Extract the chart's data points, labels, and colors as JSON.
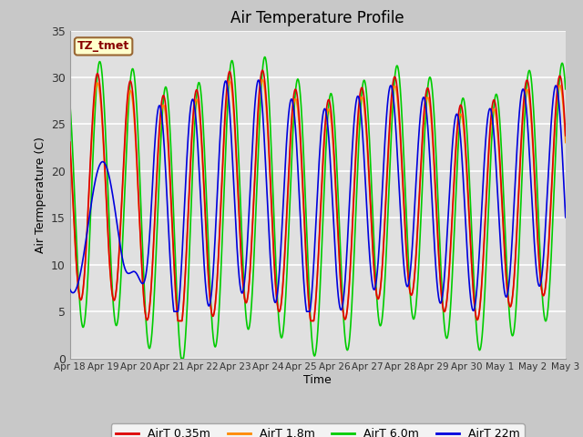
{
  "title": "Air Temperature Profile",
  "xlabel": "Time",
  "ylabel": "Air Termperature (C)",
  "ylim": [
    0,
    35
  ],
  "annotation_text": "TZ_tmet",
  "annotation_bg": "#FFFFCC",
  "annotation_border": "#996633",
  "annotation_text_color": "#880000",
  "fig_bg": "#C8C8C8",
  "plot_bg": "#E0E0E0",
  "grid_color": "#FFFFFF",
  "series": [
    {
      "label": "AirT 0.35m",
      "color": "#DD0000",
      "lw": 1.2
    },
    {
      "label": "AirT 1.8m",
      "color": "#FF8800",
      "lw": 1.2
    },
    {
      "label": "AirT 6.0m",
      "color": "#00CC00",
      "lw": 1.2
    },
    {
      "label": "AirT 22m",
      "color": "#0000DD",
      "lw": 1.2
    }
  ],
  "xtick_labels": [
    "Apr 18",
    "Apr 19",
    "Apr 20",
    "Apr 21",
    "Apr 22",
    "Apr 23",
    "Apr 24",
    "Apr 25",
    "Apr 26",
    "Apr 27",
    "Apr 28",
    "Apr 29",
    "Apr 30",
    "May 1",
    "May 2",
    "May 3"
  ],
  "ytick_values": [
    0,
    5,
    10,
    15,
    20,
    25,
    30,
    35
  ],
  "figsize": [
    6.4,
    4.8
  ],
  "dpi": 100
}
